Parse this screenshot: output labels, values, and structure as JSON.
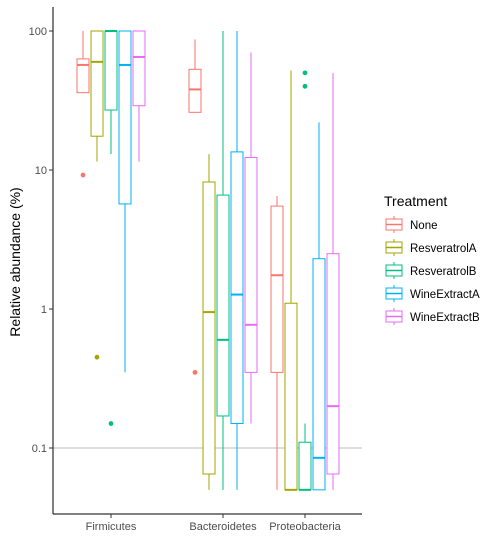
{
  "chart_data": {
    "type": "box",
    "ylabel": "Relative abundance (%)",
    "xlabel": "",
    "y_scale": "log10",
    "ylim": [
      0.04,
      130
    ],
    "y_ticks": [
      {
        "value": 0.1,
        "label": "0.1"
      },
      {
        "value": 1,
        "label": "1"
      },
      {
        "value": 10,
        "label": "10"
      },
      {
        "value": 100,
        "label": "100"
      }
    ],
    "reference_line": 0.1,
    "categories": [
      "Firmicutes",
      "Bacteroidetes",
      "Proteobacteria"
    ],
    "legend_title": "Treatment",
    "legend_position": "right",
    "series": [
      {
        "name": "None",
        "color": "#F8766D",
        "boxes": [
          {
            "whisker_low": 36,
            "q1": 36,
            "median": 57,
            "q3": 63,
            "whisker_high": 100,
            "outliers": [
              9.2
            ]
          },
          {
            "whisker_low": 26,
            "q1": 26,
            "median": 38,
            "q3": 53,
            "whisker_high": 87,
            "outliers": [
              0.35
            ]
          },
          {
            "whisker_low": 0.05,
            "q1": 0.35,
            "median": 1.75,
            "q3": 5.5,
            "whisker_high": 6.5,
            "outliers": []
          }
        ]
      },
      {
        "name": "ResveratrolA",
        "color": "#A3A500",
        "boxes": [
          {
            "whisker_low": 11.5,
            "q1": 17.5,
            "median": 60,
            "q3": 100,
            "whisker_high": 100,
            "outliers": [
              0.45
            ]
          },
          {
            "whisker_low": 0.05,
            "q1": 0.065,
            "median": 0.95,
            "q3": 8.2,
            "whisker_high": 13,
            "outliers": []
          },
          {
            "whisker_low": 0.05,
            "q1": 0.05,
            "median": 0.05,
            "q3": 1.1,
            "whisker_high": 52,
            "outliers": []
          }
        ]
      },
      {
        "name": "ResveratrolB",
        "color": "#00BF7D",
        "boxes": [
          {
            "whisker_low": 13,
            "q1": 27,
            "median": 100,
            "q3": 100,
            "whisker_high": 100,
            "outliers": [
              0.15
            ]
          },
          {
            "whisker_low": 0.05,
            "q1": 0.17,
            "median": 0.6,
            "q3": 6.6,
            "whisker_high": 100,
            "outliers": []
          },
          {
            "whisker_low": 0.05,
            "q1": 0.05,
            "median": 0.05,
            "q3": 0.11,
            "whisker_high": 0.15,
            "outliers": [
              40,
              50
            ]
          }
        ]
      },
      {
        "name": "WineExtractA",
        "color": "#00B0F6",
        "boxes": [
          {
            "whisker_low": 0.35,
            "q1": 5.7,
            "median": 57,
            "q3": 100,
            "whisker_high": 100,
            "outliers": []
          },
          {
            "whisker_low": 0.05,
            "q1": 0.15,
            "median": 1.27,
            "q3": 13.5,
            "whisker_high": 100,
            "outliers": []
          },
          {
            "whisker_low": 0.05,
            "q1": 0.05,
            "median": 0.085,
            "q3": 2.3,
            "whisker_high": 22,
            "outliers": []
          }
        ]
      },
      {
        "name": "WineExtractB",
        "color": "#E76BF3",
        "boxes": [
          {
            "whisker_low": 11.5,
            "q1": 29,
            "median": 65,
            "q3": 100,
            "whisker_high": 100,
            "outliers": []
          },
          {
            "whisker_low": 0.15,
            "q1": 0.35,
            "median": 0.77,
            "q3": 12.3,
            "whisker_high": 70,
            "outliers": []
          },
          {
            "whisker_low": 0.05,
            "q1": 0.065,
            "median": 0.2,
            "q3": 2.5,
            "whisker_high": 50,
            "outliers": []
          }
        ]
      }
    ]
  }
}
